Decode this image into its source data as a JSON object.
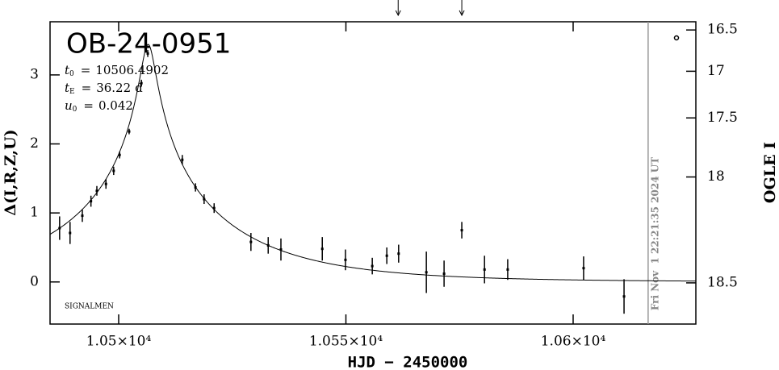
{
  "chart_data": {
    "type": "scatter",
    "title": "OB-24-0951",
    "xlabel": "HJD − 2450000",
    "ylabel": "Δ(I,R,Z,U)",
    "y2label": "OGLE I",
    "footnote": "SIGNALMEN",
    "timestamp": "Fri Nov  1 22:21:35 2024 UT",
    "parameters": [
      {
        "symbol": "t",
        "sub": "0",
        "sep": "=",
        "value": 10506.4902
      },
      {
        "symbol": "t",
        "sub": "E",
        "sep": "=",
        "value": 36.22,
        "unit": "d"
      },
      {
        "symbol": "u",
        "sub": "0",
        "sep": "=",
        "value": 0.042
      }
    ],
    "xlim": [
      10484.9,
      10627
    ],
    "ylim": [
      -0.61,
      3.77
    ],
    "y2lim": [
      18.59,
      16.4
    ],
    "xticks": [
      {
        "value": 10500,
        "label": "1.05×10⁴"
      },
      {
        "value": 10550,
        "label": "1.055×10⁴"
      },
      {
        "value": 10600,
        "label": "1.06×10⁴"
      }
    ],
    "yticks": [
      0,
      1,
      2,
      3
    ],
    "y2ticks": [
      16.5,
      17,
      17.5,
      18,
      18.5
    ],
    "arrows": [
      10561.5,
      10575.5
    ],
    "now_line": 10616.5,
    "series": [
      {
        "name": "OGLE I",
        "color": "#000000",
        "x": [
          10487.0,
          10489.3,
          10492.0,
          10493.9,
          10495.2,
          10497.2,
          10498.9,
          10500.2,
          10502.3,
          10505.0,
          10506.4,
          10514.0,
          10516.9,
          10518.8,
          10521.0,
          10529.1,
          10532.9,
          10535.7,
          10544.8,
          10549.9,
          10555.8,
          10559.0,
          10561.6,
          10567.7,
          10571.6,
          10575.5,
          10580.5,
          10585.6,
          10602.3,
          10611.2
        ],
        "values": [
          0.78,
          0.71,
          0.96,
          1.17,
          1.32,
          1.42,
          1.61,
          1.84,
          2.18,
          2.88,
          3.31,
          1.77,
          1.37,
          1.2,
          1.07,
          0.58,
          0.53,
          0.47,
          0.48,
          0.32,
          0.23,
          0.38,
          0.41,
          0.14,
          0.12,
          0.75,
          0.18,
          0.18,
          0.2,
          -0.21
        ],
        "errors": [
          0.17,
          0.16,
          0.09,
          0.08,
          0.07,
          0.07,
          0.06,
          0.05,
          0.04,
          0.05,
          0.05,
          0.07,
          0.06,
          0.07,
          0.07,
          0.13,
          0.12,
          0.16,
          0.17,
          0.15,
          0.12,
          0.12,
          0.13,
          0.3,
          0.19,
          0.12,
          0.2,
          0.15,
          0.17,
          0.25
        ]
      }
    ]
  }
}
